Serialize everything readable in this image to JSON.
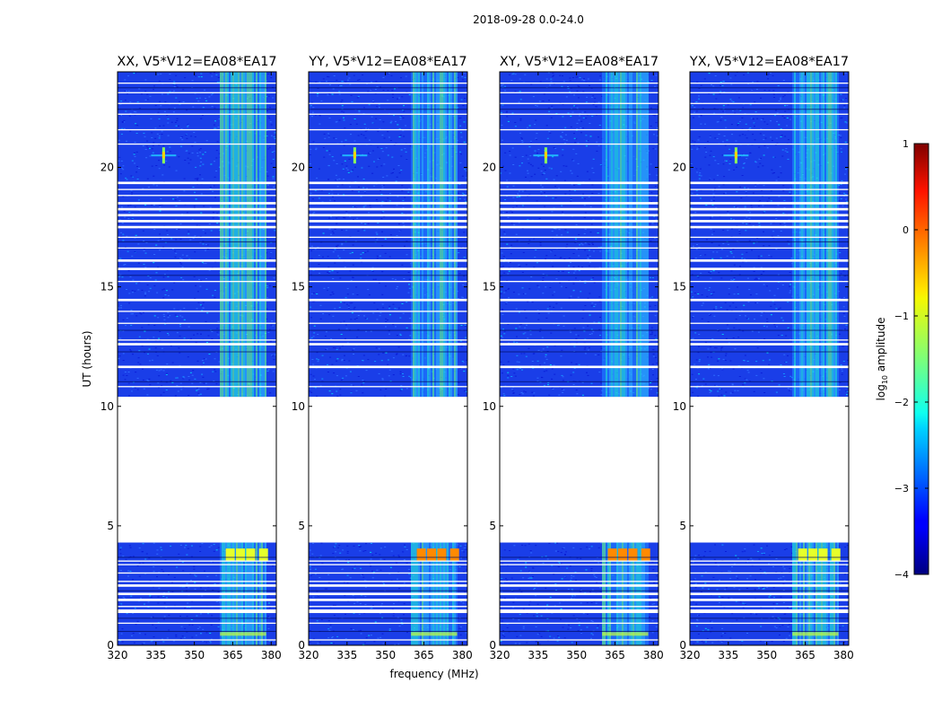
{
  "suptitle": "2018-09-28 0.0-24.0",
  "chart_data": {
    "type": "heatmap",
    "xlabel": "frequency (MHz)",
    "ylabel": "UT (hours)",
    "xlim": [
      320,
      382
    ],
    "ylim": [
      0,
      24
    ],
    "xticks": [
      320,
      335,
      350,
      365,
      380
    ],
    "xtick_labels": [
      "320",
      "335",
      "350",
      "365",
      "380"
    ],
    "yticks": [
      0,
      5,
      10,
      15,
      20
    ],
    "ytick_labels": [
      "0",
      "5",
      "10",
      "15",
      "20"
    ],
    "data_gap_hours": [
      4.3,
      10.4
    ],
    "rfi_band_mhz": [
      360,
      378
    ],
    "spot_source": {
      "freq_mhz": 338,
      "ut_hours": 20.5
    },
    "panels": [
      {
        "title": "XX, V5*V12=EA08*EA17"
      },
      {
        "title": "YY, V5*V12=EA08*EA17"
      },
      {
        "title": "XY, V5*V12=EA08*EA17"
      },
      {
        "title": "YX, V5*V12=EA08*EA17"
      }
    ],
    "colorbar": {
      "label": "log",
      "label_sub": "10",
      "label_suffix": " amplitude",
      "range": [
        -4,
        1
      ],
      "ticks": [
        1,
        0,
        -1,
        -2,
        -3,
        -4
      ],
      "tick_labels": [
        "1",
        "0",
        "−1",
        "−2",
        "−3",
        "−4"
      ],
      "cmap": "jet"
    }
  }
}
